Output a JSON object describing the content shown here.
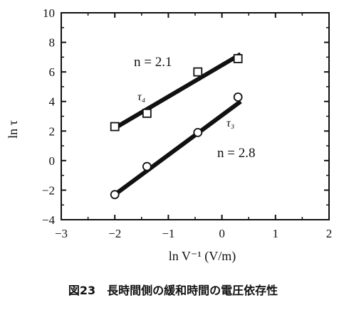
{
  "chart_data": {
    "type": "scatter",
    "xlabel": "ln V⁻¹ (V/m)",
    "ylabel": "ln τ",
    "xlim": [
      -3,
      2
    ],
    "ylim": [
      -4,
      10
    ],
    "x_ticks": [
      "−3",
      "−2",
      "−1",
      "0",
      "1",
      "2"
    ],
    "y_ticks": [
      "−4",
      "−2",
      "0",
      "2",
      "4",
      "6",
      "8",
      "10"
    ],
    "grid": false,
    "series": [
      {
        "name": "τ₄",
        "marker": "square",
        "x": [
          -2.0,
          -1.4,
          -0.45,
          0.3
        ],
        "y": [
          2.3,
          3.2,
          6.0,
          6.9
        ],
        "fit": [
          [
            -2.0,
            2.2
          ],
          [
            0.35,
            7.2
          ]
        ],
        "fit_label": "n = 2.1"
      },
      {
        "name": "τ₃",
        "marker": "circle",
        "x": [
          -2.0,
          -1.4,
          -0.45,
          0.3
        ],
        "y": [
          -2.3,
          -0.4,
          1.9,
          4.3
        ],
        "fit": [
          [
            -2.0,
            -2.3
          ],
          [
            0.35,
            4.0
          ]
        ],
        "fit_label": "n = 2.8"
      }
    ]
  },
  "caption": "図23　長時間側の緩和時間の電圧依存性"
}
